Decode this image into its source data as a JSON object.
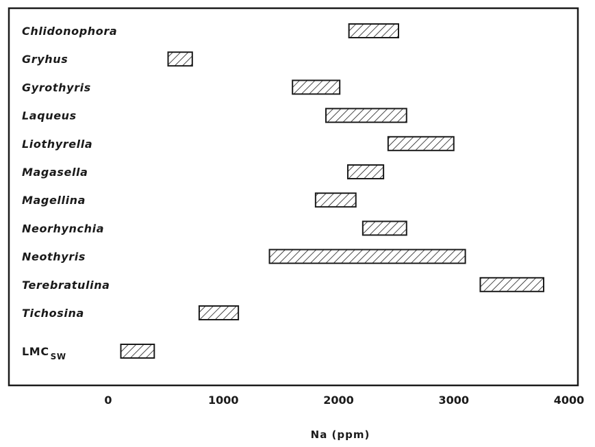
{
  "chart_data": {
    "type": "range-bar",
    "xlabel": "Na (ppm)",
    "xlim": [
      -850,
      4000
    ],
    "xticks": [
      0,
      1000,
      2000,
      3000,
      4000
    ],
    "grid": false,
    "legend": "none",
    "colors": {
      "ink": "#1a1a1a",
      "background": "#ffffff"
    },
    "categories": [
      "Chlidonophora",
      "Gryhus",
      "Gyrothyris",
      "Laqueus",
      "Liothyrella",
      "Magasella",
      "Magellina",
      "Neorhynchia",
      "Neothyris",
      "Terebratulina",
      "Tichosina"
    ],
    "ranges": [
      [
        2090,
        2520
      ],
      [
        520,
        730
      ],
      [
        1600,
        2010
      ],
      [
        1890,
        2590
      ],
      [
        2430,
        3000
      ],
      [
        2080,
        2390
      ],
      [
        1800,
        2150
      ],
      [
        2210,
        2590
      ],
      [
        1400,
        3100
      ],
      [
        3230,
        3780
      ],
      [
        790,
        1130
      ]
    ],
    "reference": {
      "label_main": "LMC",
      "label_sub": "SW",
      "range": [
        110,
        400
      ]
    }
  }
}
